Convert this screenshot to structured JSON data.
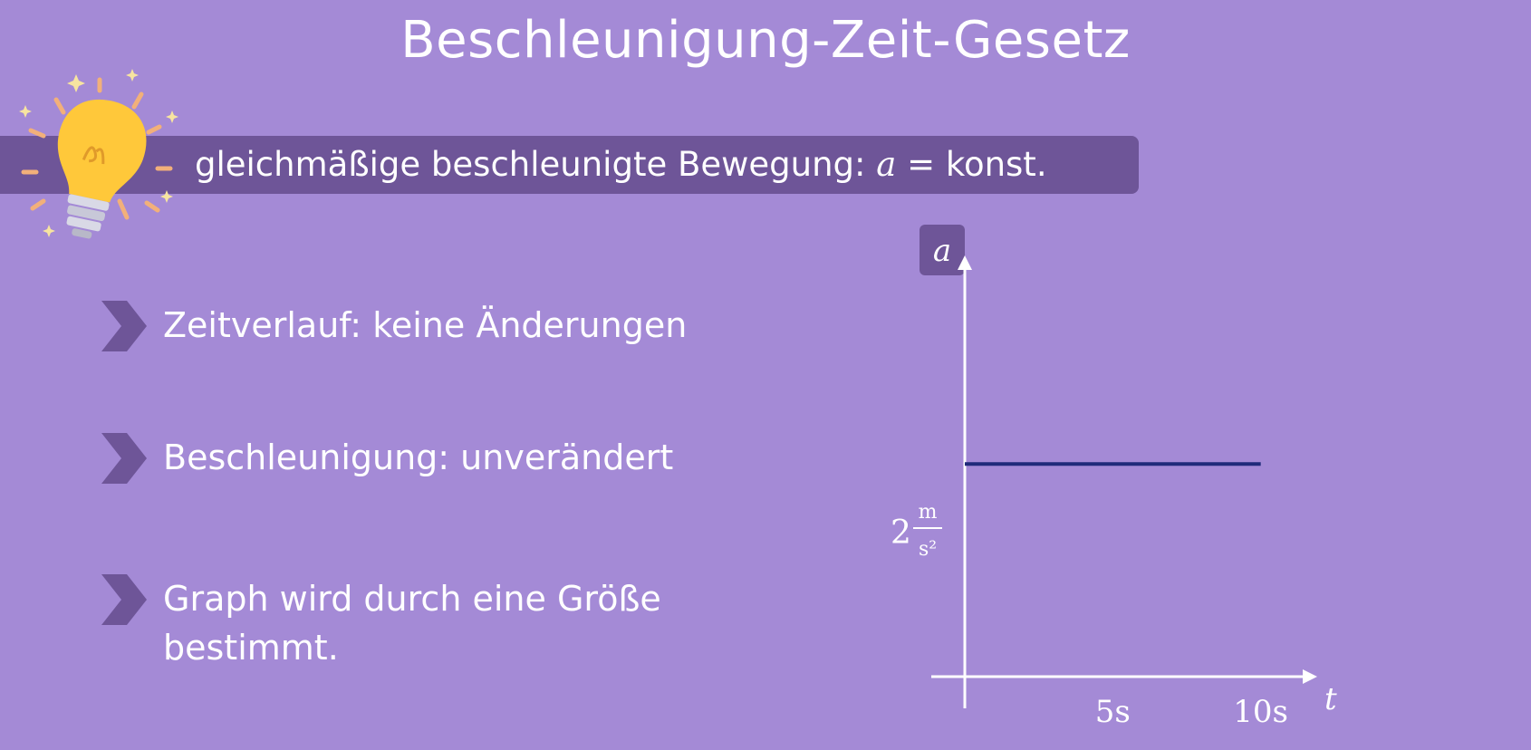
{
  "title": "Beschleunigung-Zeit-Gesetz",
  "banner": {
    "text": "gleichmäßige beschleunigte Bewegung: ",
    "variable": "a",
    "rest": " = konst."
  },
  "points": [
    "Zeitverlauf: keine Änderungen",
    "Beschleunigung: unverändert",
    "Graph wird durch eine Größe bestimmt."
  ],
  "colors": {
    "background": "#a48ad6",
    "banner": "#6e5598",
    "line": "#1f2a7a",
    "bulb": "#ffc83a"
  },
  "chart_data": {
    "type": "line",
    "x": [
      0,
      5,
      10
    ],
    "y": [
      2,
      2,
      2
    ],
    "xlabel": "t",
    "ylabel": "a",
    "x_ticks": [
      "5s",
      "10s"
    ],
    "y_tick": {
      "value": "2",
      "unit_num": "m",
      "unit_den": "s²"
    },
    "xlim": [
      0,
      12
    ],
    "ylim": [
      0,
      5
    ],
    "grid": false
  }
}
